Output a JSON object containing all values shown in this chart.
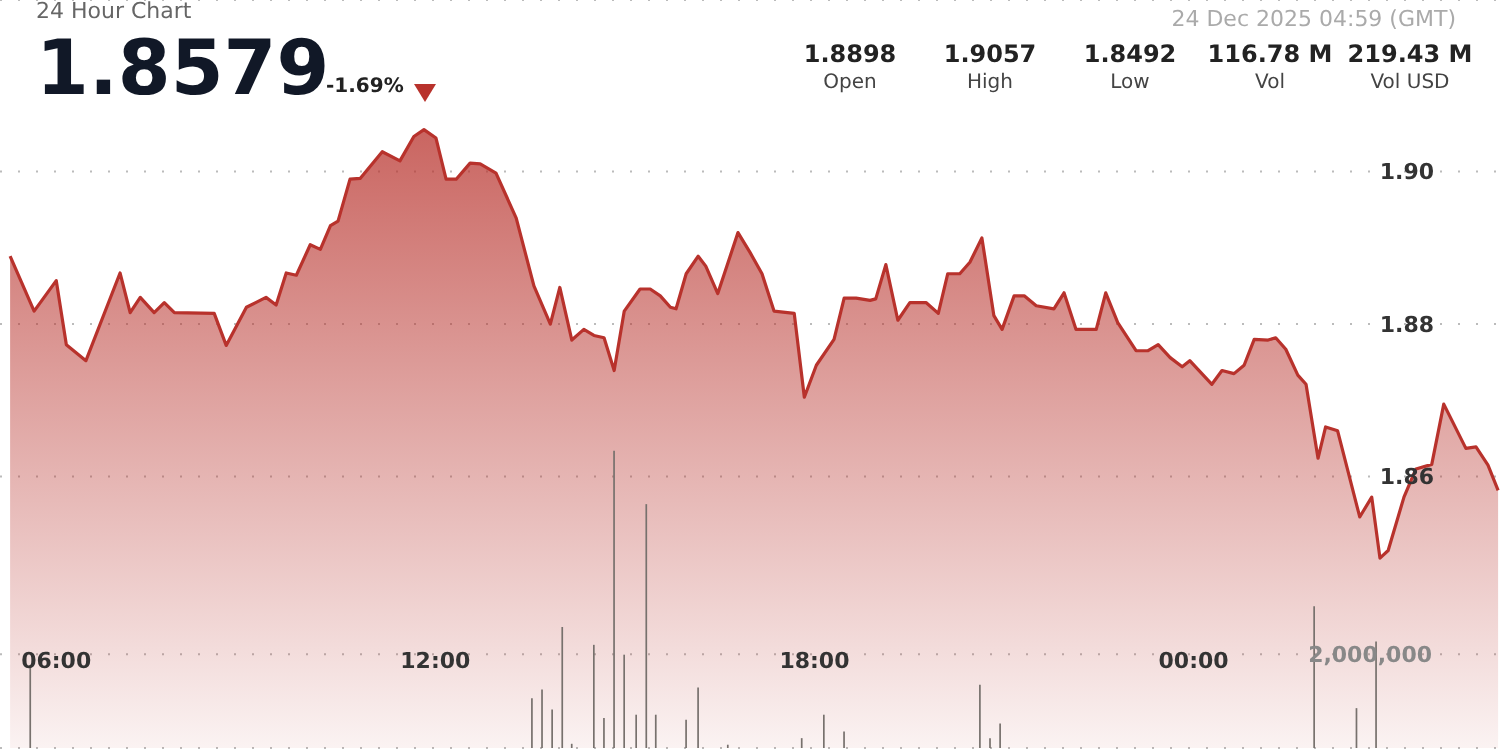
{
  "chart_data": {
    "type": "area",
    "title": "24 Hour Chart",
    "annotations": [
      "24 Dec 2025 04:59 (GMT)",
      "1.8579",
      "-1.69%",
      "1.8898",
      "Open",
      "1.9057",
      "High",
      "1.8492",
      "Low",
      "116.78 M",
      "Vol",
      "219.43 M",
      "Vol USD"
    ],
    "xlim": [
      5.11,
      28.85
    ],
    "xticks": [
      {
        "value": 6,
        "label": "06:00"
      },
      {
        "value": 12,
        "label": "12:00"
      },
      {
        "value": 18,
        "label": "18:00"
      },
      {
        "value": 24,
        "label": "00:00"
      }
    ],
    "ylim": [
      1.8244,
      1.9225
    ],
    "yticks": [
      {
        "value": 1.86,
        "label": "1.86"
      },
      {
        "value": 1.88,
        "label": "1.88"
      },
      {
        "value": 1.9,
        "label": "1.90"
      }
    ],
    "y2lim": [
      0,
      15950000
    ],
    "y2ticks": [
      {
        "value": 0,
        "label": null
      },
      {
        "value": 2000000,
        "label": "2,000,000"
      }
    ],
    "grid": "y",
    "series": [
      {
        "color": "#b8322c",
        "x": [
          5.27,
          5.65,
          6.0,
          6.16,
          6.47,
          7.01,
          7.17,
          7.33,
          7.55,
          7.71,
          7.87,
          8.5,
          8.69,
          9.01,
          9.32,
          9.48,
          9.64,
          9.8,
          10.02,
          10.18,
          10.34,
          10.46,
          10.65,
          10.81,
          11.16,
          11.44,
          11.66,
          11.82,
          12.01,
          12.17,
          12.33,
          12.55,
          12.71,
          12.96,
          13.28,
          13.56,
          13.82,
          13.97,
          14.16,
          14.35,
          14.51,
          14.67,
          14.83,
          14.99,
          15.24,
          15.4,
          15.56,
          15.72,
          15.81,
          15.97,
          16.16,
          16.28,
          16.47,
          16.79,
          16.98,
          17.17,
          17.36,
          17.68,
          17.84,
          18.03,
          18.31,
          18.47,
          18.66,
          18.88,
          18.97,
          19.13,
          19.32,
          19.51,
          19.77,
          19.96,
          20.11,
          20.3,
          20.46,
          20.65,
          20.84,
          20.97,
          21.16,
          21.32,
          21.51,
          21.79,
          21.95,
          22.14,
          22.3,
          22.46,
          22.61,
          22.8,
          23.09,
          23.28,
          23.44,
          23.63,
          23.82,
          23.94,
          24.29,
          24.45,
          24.64,
          24.8,
          24.96,
          25.18,
          25.3,
          25.46,
          25.65,
          25.78,
          25.97,
          26.09,
          26.28,
          26.63,
          26.82,
          26.95,
          27.08,
          27.33,
          27.52,
          27.77,
          27.96,
          28.31,
          28.47,
          28.66,
          28.82
        ],
        "values": [
          1.8889,
          1.8817,
          1.8857,
          1.8773,
          1.8752,
          1.8867,
          1.8815,
          1.8835,
          1.8815,
          1.8828,
          1.8815,
          1.8814,
          1.8772,
          1.8822,
          1.8835,
          1.8825,
          1.8867,
          1.8864,
          1.8904,
          1.8898,
          1.8929,
          1.8935,
          1.899,
          1.8991,
          1.9026,
          1.9014,
          1.9046,
          1.9055,
          1.9044,
          1.899,
          1.899,
          1.9011,
          1.901,
          1.8998,
          1.8939,
          1.885,
          1.88,
          1.8848,
          1.8779,
          1.8793,
          1.8785,
          1.8782,
          1.8739,
          1.8817,
          1.8846,
          1.8846,
          1.8837,
          1.8822,
          1.882,
          1.8866,
          1.8889,
          1.8876,
          1.884,
          1.892,
          1.8894,
          1.8866,
          1.8817,
          1.8814,
          1.8704,
          1.8746,
          1.878,
          1.8834,
          1.8834,
          1.8831,
          1.8833,
          1.8878,
          1.8805,
          1.8828,
          1.8828,
          1.8814,
          1.8866,
          1.8866,
          1.8881,
          1.8913,
          1.8811,
          1.8793,
          1.8837,
          1.8837,
          1.8824,
          1.882,
          1.8841,
          1.8793,
          1.8793,
          1.8793,
          1.8841,
          1.8802,
          1.8765,
          1.8765,
          1.8773,
          1.8756,
          1.8744,
          1.8752,
          1.8721,
          1.8739,
          1.8735,
          1.8746,
          1.878,
          1.8779,
          1.8782,
          1.8767,
          1.8733,
          1.8721,
          1.8624,
          1.8665,
          1.866,
          1.8547,
          1.8573,
          1.8493,
          1.8503,
          1.8573,
          1.861,
          1.8616,
          1.8695,
          1.8637,
          1.8639,
          1.8615,
          1.8582
        ]
      },
      {
        "type": "bar",
        "axis": "y2",
        "color": "#77716d",
        "x": [
          5.59,
          13.53,
          13.69,
          13.85,
          14.01,
          14.16,
          14.51,
          14.67,
          14.83,
          14.99,
          15.18,
          15.34,
          15.49,
          15.97,
          16.16,
          16.63,
          17.8,
          18.15,
          18.47,
          20.62,
          20.78,
          20.94,
          25.91,
          26.58,
          26.89
        ],
        "values": [
          1770000,
          1060000,
          1250000,
          820000,
          2580000,
          90000,
          2200000,
          640000,
          6340000,
          1990000,
          710000,
          5200000,
          710000,
          600000,
          1290000,
          70000,
          210000,
          710000,
          350000,
          1350000,
          210000,
          520000,
          3020000,
          850000,
          2270000
        ]
      }
    ]
  }
}
